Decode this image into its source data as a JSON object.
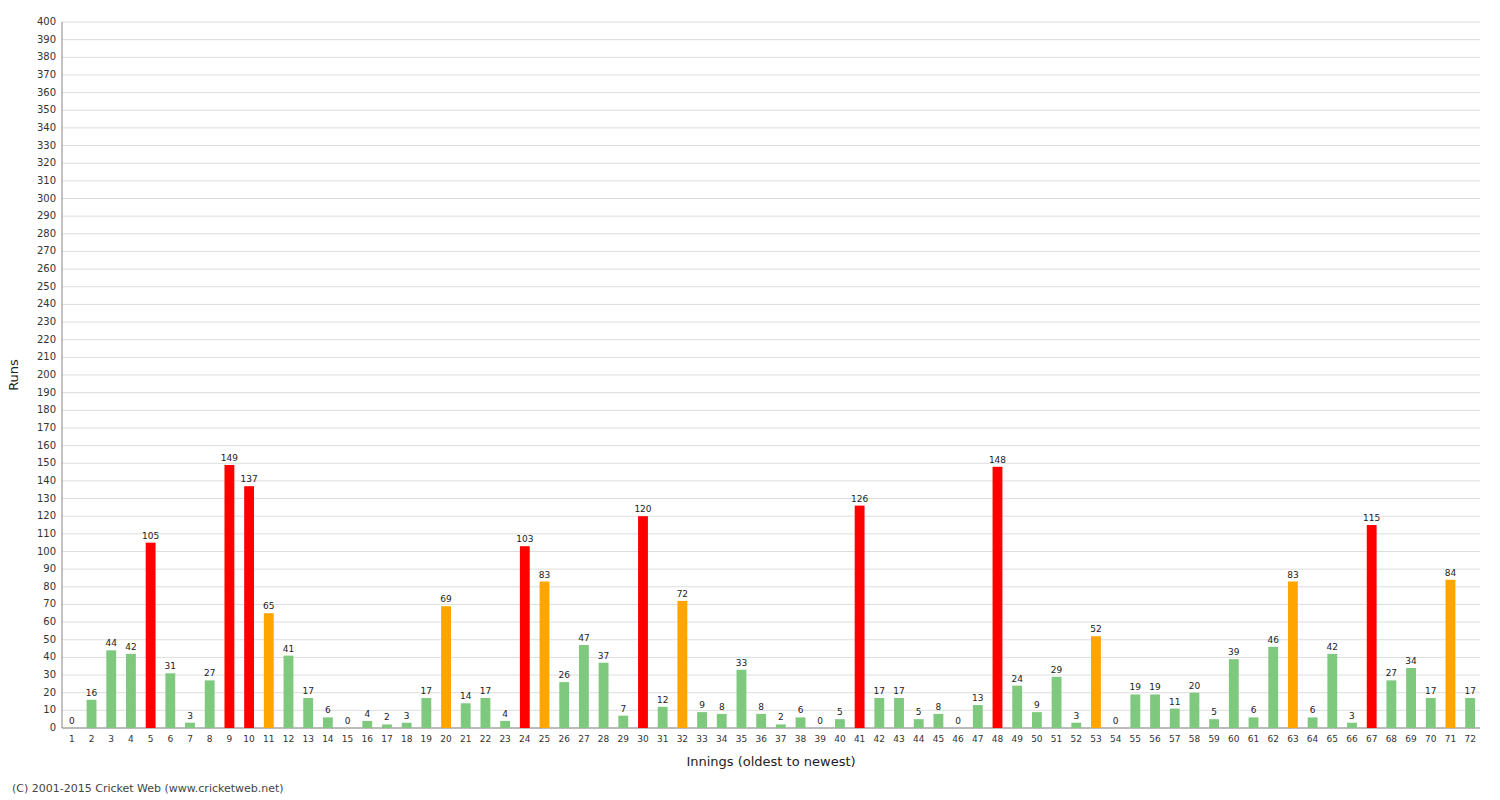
{
  "chart_data": {
    "type": "bar",
    "xlabel": "Innings (oldest to newest)",
    "ylabel": "Runs",
    "annotations": [
      "(C) 2001-2015 Cricket Web (www.cricketweb.net)"
    ],
    "categories": [
      "1",
      "2",
      "3",
      "4",
      "5",
      "6",
      "7",
      "8",
      "9",
      "10",
      "11",
      "12",
      "13",
      "14",
      "15",
      "16",
      "17",
      "18",
      "19",
      "20",
      "21",
      "22",
      "23",
      "24",
      "25",
      "26",
      "27",
      "28",
      "29",
      "30",
      "31",
      "32",
      "33",
      "34",
      "35",
      "36",
      "37",
      "38",
      "39",
      "40",
      "41",
      "42",
      "43",
      "44",
      "45",
      "46",
      "47",
      "48",
      "49",
      "50",
      "51",
      "52",
      "53",
      "54",
      "55",
      "56",
      "57",
      "58",
      "59",
      "60",
      "61",
      "62",
      "63",
      "64",
      "65",
      "66",
      "67",
      "68",
      "69",
      "70",
      "71",
      "72"
    ],
    "values": [
      0,
      16,
      44,
      42,
      105,
      31,
      3,
      27,
      149,
      137,
      65,
      41,
      17,
      6,
      0,
      4,
      2,
      3,
      17,
      69,
      14,
      17,
      4,
      103,
      83,
      26,
      47,
      37,
      7,
      120,
      12,
      72,
      9,
      8,
      33,
      8,
      2,
      6,
      0,
      5,
      126,
      17,
      17,
      5,
      8,
      0,
      13,
      148,
      24,
      9,
      29,
      3,
      52,
      0,
      19,
      19,
      11,
      20,
      5,
      39,
      6,
      46,
      83,
      6,
      42,
      3,
      115,
      27,
      34,
      17,
      84,
      17
    ],
    "colors": [
      "#7fc97f",
      "#7fc97f",
      "#7fc97f",
      "#7fc97f",
      "#ff0000",
      "#7fc97f",
      "#7fc97f",
      "#7fc97f",
      "#ff0000",
      "#ff0000",
      "#ffa500",
      "#7fc97f",
      "#7fc97f",
      "#7fc97f",
      "#7fc97f",
      "#7fc97f",
      "#7fc97f",
      "#7fc97f",
      "#7fc97f",
      "#ffa500",
      "#7fc97f",
      "#7fc97f",
      "#7fc97f",
      "#ff0000",
      "#ffa500",
      "#7fc97f",
      "#7fc97f",
      "#7fc97f",
      "#7fc97f",
      "#ff0000",
      "#7fc97f",
      "#ffa500",
      "#7fc97f",
      "#7fc97f",
      "#7fc97f",
      "#7fc97f",
      "#7fc97f",
      "#7fc97f",
      "#7fc97f",
      "#7fc97f",
      "#ff0000",
      "#7fc97f",
      "#7fc97f",
      "#7fc97f",
      "#7fc97f",
      "#7fc97f",
      "#7fc97f",
      "#ff0000",
      "#7fc97f",
      "#7fc97f",
      "#7fc97f",
      "#7fc97f",
      "#ffa500",
      "#7fc97f",
      "#7fc97f",
      "#7fc97f",
      "#7fc97f",
      "#7fc97f",
      "#7fc97f",
      "#7fc97f",
      "#7fc97f",
      "#7fc97f",
      "#ffa500",
      "#7fc97f",
      "#7fc97f",
      "#7fc97f",
      "#ff0000",
      "#7fc97f",
      "#7fc97f",
      "#7fc97f",
      "#ffa500",
      "#7fc97f"
    ],
    "ylim": [
      0,
      400
    ],
    "yticks": [
      0,
      10,
      20,
      30,
      40,
      50,
      60,
      70,
      80,
      90,
      100,
      110,
      120,
      130,
      140,
      150,
      160,
      170,
      180,
      190,
      200,
      210,
      220,
      230,
      240,
      250,
      260,
      270,
      280,
      290,
      300,
      310,
      320,
      330,
      340,
      350,
      360,
      370,
      380,
      390,
      400
    ],
    "grid": true,
    "data_labels": true
  }
}
